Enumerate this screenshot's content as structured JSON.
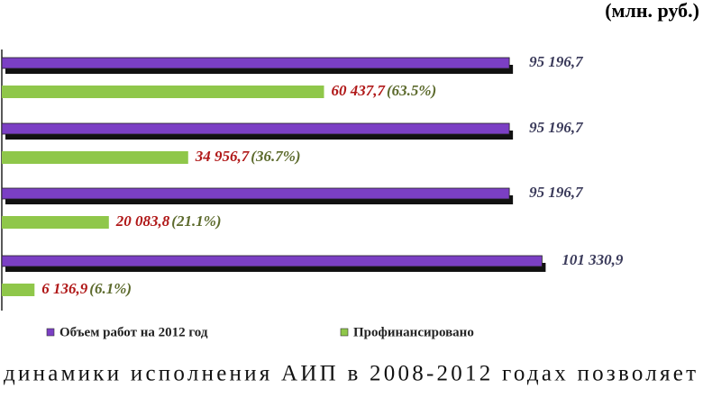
{
  "chart_data": {
    "type": "bar",
    "orientation": "horizontal",
    "unit_label": "(млн. руб.)",
    "categories": [
      null,
      null,
      null,
      null
    ],
    "xlim": [
      0,
      130000
    ],
    "series": [
      {
        "name": "Объем работ на 2012 год",
        "color": "#7b3fc4",
        "values": [
          95196.7,
          95196.7,
          95196.7,
          101330.9
        ],
        "value_labels": [
          "95 196,7",
          "95 196,7",
          "95 196,7",
          "101 330,9"
        ]
      },
      {
        "name": "Профинансировано",
        "color": "#8fc74a",
        "values": [
          60437.7,
          34956.7,
          20083.8,
          6136.9
        ],
        "value_labels": [
          "60 437,7",
          "34 956,7",
          "20 083,8",
          "6 136,9"
        ],
        "percent_labels": [
          "(63.5%)",
          "(36.7%)",
          "(21.1%)",
          "(6.1%)"
        ]
      }
    ]
  },
  "body_text": "динамики исполнения АИП в 2008-2012 годах позволяет"
}
